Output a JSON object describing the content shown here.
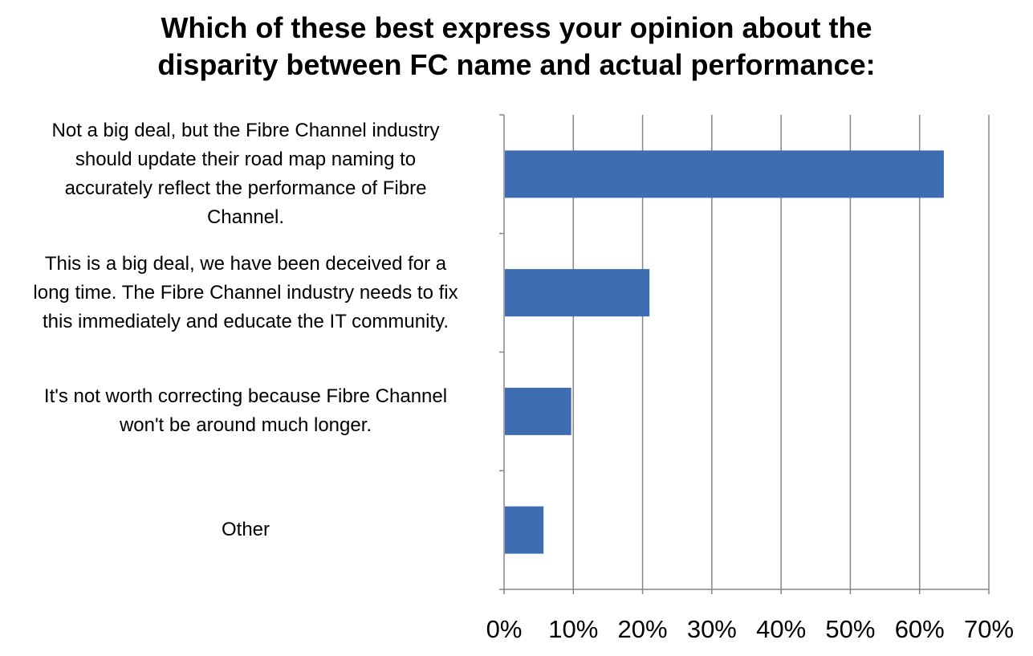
{
  "chart_data": {
    "type": "bar",
    "orientation": "horizontal",
    "title_lines": [
      "Which of these best express your opinion about the",
      "disparity between FC name and actual performance:"
    ],
    "categories": [
      {
        "label": "Not a big deal, but the Fibre Channel industry should update their road map naming to accurately reflect the performance of Fibre Channel.",
        "lines": [
          "Not a big deal, but the Fibre Channel industry",
          "should update their road map naming to",
          "accurately reflect the performance of Fibre",
          "Channel."
        ]
      },
      {
        "label": "This is a big deal, we have been deceived for a long time. The Fibre Channel industry needs to fix this immediately and educate the IT community.",
        "lines": [
          "This is a big deal, we have been deceived for a",
          "long time. The Fibre Channel industry needs to fix",
          "this immediately and educate the IT community."
        ]
      },
      {
        "label": "It's not worth correcting because Fibre Channel won't be around much longer.",
        "lines": [
          "It's not worth correcting because Fibre Channel",
          "won't be around much longer."
        ]
      },
      {
        "label": "Other",
        "lines": [
          "Other"
        ]
      }
    ],
    "values": [
      63.5,
      21,
      9.7,
      5.7
    ],
    "xlim": [
      0,
      70
    ],
    "xticks": [
      0,
      10,
      20,
      30,
      40,
      50,
      60,
      70
    ],
    "xtick_labels": [
      "0%",
      "10%",
      "20%",
      "30%",
      "40%",
      "50%",
      "60%",
      "70%"
    ],
    "grid": "vertical",
    "legend": "none",
    "bar_color": "#3f6db1",
    "grid_color": "#868686"
  }
}
